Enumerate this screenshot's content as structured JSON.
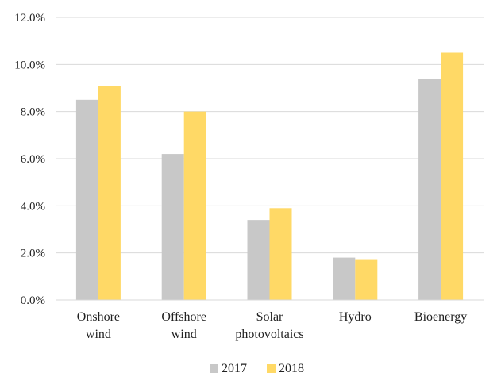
{
  "chart_data": {
    "type": "bar",
    "title": "",
    "xlabel": "",
    "ylabel": "",
    "categories": [
      [
        "Onshore",
        "wind"
      ],
      [
        "Offshore",
        "wind"
      ],
      [
        "Solar",
        "photovoltaics"
      ],
      [
        "Hydro"
      ],
      [
        "Bioenergy"
      ]
    ],
    "series": [
      {
        "name": "2017",
        "color": "#c8c8c8",
        "values": [
          8.5,
          6.2,
          3.4,
          1.8,
          9.4
        ]
      },
      {
        "name": "2018",
        "color": "#ffd966",
        "values": [
          9.1,
          8.0,
          3.9,
          1.7,
          10.5
        ]
      }
    ],
    "ylim": [
      0,
      12
    ],
    "yticks": [
      "0.0%",
      "2.0%",
      "4.0%",
      "6.0%",
      "8.0%",
      "10.0%",
      "12.0%"
    ],
    "grid": true,
    "legend_position": "bottom"
  }
}
